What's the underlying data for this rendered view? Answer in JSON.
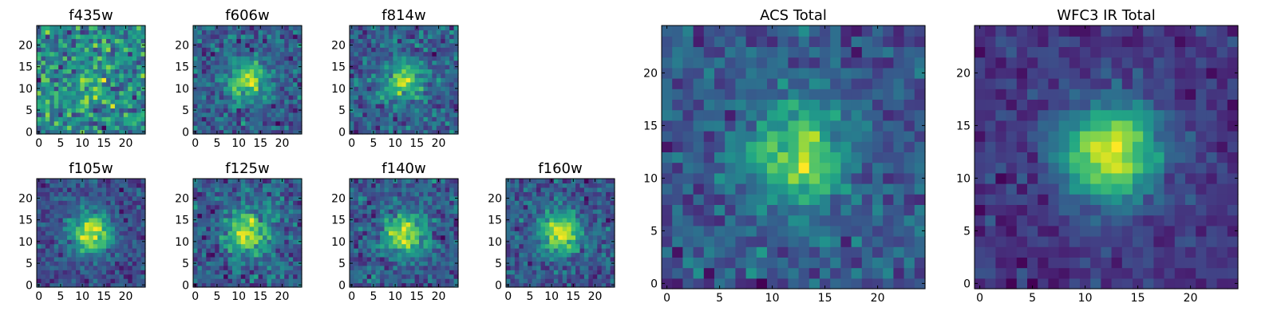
{
  "chart_data": [
    {
      "id": "f435w",
      "type": "heatmap",
      "title": "f435w",
      "grid_size": 25,
      "xlim": [
        -0.5,
        24.5
      ],
      "ylim": [
        -0.5,
        24.5
      ],
      "xticks": [
        0,
        5,
        10,
        15,
        20
      ],
      "yticks": [
        0,
        5,
        10,
        15,
        20
      ],
      "colormap": "viridis",
      "center": [
        12,
        12
      ],
      "peak_amplitude": 0.15,
      "noise_level": 0.85,
      "seed": 11
    },
    {
      "id": "f606w",
      "type": "heatmap",
      "title": "f606w",
      "grid_size": 25,
      "xlim": [
        -0.5,
        24.5
      ],
      "ylim": [
        -0.5,
        24.5
      ],
      "xticks": [
        0,
        5,
        10,
        15,
        20
      ],
      "yticks": [
        0,
        5,
        10,
        15,
        20
      ],
      "colormap": "viridis",
      "center": [
        12,
        12
      ],
      "peak_amplitude": 0.55,
      "noise_level": 0.7,
      "seed": 23
    },
    {
      "id": "f814w",
      "type": "heatmap",
      "title": "f814w",
      "grid_size": 25,
      "xlim": [
        -0.5,
        24.5
      ],
      "ylim": [
        -0.5,
        24.5
      ],
      "xticks": [
        0,
        5,
        10,
        15,
        20
      ],
      "yticks": [
        0,
        5,
        10,
        15,
        20
      ],
      "colormap": "viridis",
      "center": [
        12,
        12
      ],
      "peak_amplitude": 0.5,
      "noise_level": 0.7,
      "seed": 37
    },
    {
      "id": "f105w",
      "type": "heatmap",
      "title": "f105w",
      "grid_size": 25,
      "xlim": [
        -0.5,
        24.5
      ],
      "ylim": [
        -0.5,
        24.5
      ],
      "xticks": [
        0,
        5,
        10,
        15,
        20
      ],
      "yticks": [
        0,
        5,
        10,
        15,
        20
      ],
      "colormap": "viridis",
      "center": [
        12,
        12
      ],
      "peak_amplitude": 0.75,
      "noise_level": 0.55,
      "seed": 41
    },
    {
      "id": "f125w",
      "type": "heatmap",
      "title": "f125w",
      "grid_size": 25,
      "xlim": [
        -0.5,
        24.5
      ],
      "ylim": [
        -0.5,
        24.5
      ],
      "xticks": [
        0,
        5,
        10,
        15,
        20
      ],
      "yticks": [
        0,
        5,
        10,
        15,
        20
      ],
      "colormap": "viridis",
      "center": [
        12,
        12
      ],
      "peak_amplitude": 0.55,
      "noise_level": 0.6,
      "seed": 53
    },
    {
      "id": "f140w",
      "type": "heatmap",
      "title": "f140w",
      "grid_size": 25,
      "xlim": [
        -0.5,
        24.5
      ],
      "ylim": [
        -0.5,
        24.5
      ],
      "xticks": [
        0,
        5,
        10,
        15,
        20
      ],
      "yticks": [
        0,
        5,
        10,
        15,
        20
      ],
      "colormap": "viridis",
      "center": [
        12,
        12
      ],
      "peak_amplitude": 0.6,
      "noise_level": 0.6,
      "seed": 67
    },
    {
      "id": "f160w",
      "type": "heatmap",
      "title": "f160w",
      "grid_size": 25,
      "xlim": [
        -0.5,
        24.5
      ],
      "ylim": [
        -0.5,
        24.5
      ],
      "xticks": [
        0,
        5,
        10,
        15,
        20
      ],
      "yticks": [
        0,
        5,
        10,
        15,
        20
      ],
      "colormap": "viridis",
      "center": [
        12,
        12
      ],
      "peak_amplitude": 0.65,
      "noise_level": 0.6,
      "seed": 79
    },
    {
      "id": "acs_total",
      "type": "heatmap",
      "title": "ACS Total",
      "grid_size": 25,
      "xlim": [
        -0.5,
        24.5
      ],
      "ylim": [
        -0.5,
        24.5
      ],
      "xticks": [
        0,
        5,
        10,
        15,
        20
      ],
      "yticks": [
        0,
        5,
        10,
        15,
        20
      ],
      "colormap": "viridis",
      "center": [
        12.5,
        12
      ],
      "peak_amplitude": 0.55,
      "noise_level": 0.55,
      "seed": 97
    },
    {
      "id": "wfc3_ir_total",
      "type": "heatmap",
      "title": "WFC3 IR Total",
      "grid_size": 25,
      "xlim": [
        -0.5,
        24.5
      ],
      "ylim": [
        -0.5,
        24.5
      ],
      "xticks": [
        0,
        5,
        10,
        15,
        20
      ],
      "yticks": [
        0,
        5,
        10,
        15,
        20
      ],
      "colormap": "viridis",
      "center": [
        12.5,
        12.5
      ],
      "peak_amplitude": 0.8,
      "noise_level": 0.35,
      "seed": 113
    }
  ],
  "colors": {
    "frame": "#000000",
    "background": "#ffffff"
  }
}
